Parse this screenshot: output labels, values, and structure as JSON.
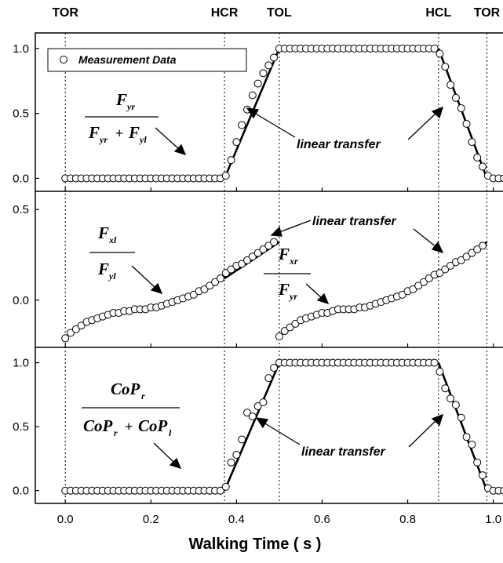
{
  "chart_data": {
    "type": "scatter",
    "xlabel": "Walking Time ( s )",
    "xlim": [
      -0.07,
      1.03
    ],
    "xticks": [
      "0.0",
      "0.2",
      "0.4",
      "0.6",
      "0.8",
      "1.0"
    ],
    "xtick_values": [
      0.0,
      0.2,
      0.4,
      0.6,
      0.8,
      1.0
    ],
    "gait_events": [
      {
        "label": "TOR",
        "x": 0.0
      },
      {
        "label": "HCR",
        "x": 0.372
      },
      {
        "label": "TOL",
        "x": 0.5
      },
      {
        "label": "HCL",
        "x": 0.872
      },
      {
        "label": "TOR",
        "x": 0.985
      }
    ],
    "legend": {
      "label": "Measurement Data",
      "placement": "top-left"
    },
    "panels": [
      {
        "id": "force-ratio",
        "ylim": [
          -0.1,
          1.12
        ],
        "yticks": [
          "0.0",
          "0.5",
          "1.0"
        ],
        "ytick_values": [
          0.0,
          0.5,
          1.0
        ],
        "equation": {
          "num": [
            "F",
            "yr"
          ],
          "den": [
            [
              "F",
              "yr"
            ],
            [
              "F",
              "yl"
            ]
          ]
        },
        "annotation": "linear transfer",
        "series": [
          {
            "x": [
              0.0,
              0.0125,
              0.025,
              0.0375,
              0.05,
              0.0625,
              0.075,
              0.0875,
              0.1,
              0.1125,
              0.125,
              0.1375,
              0.15,
              0.1625,
              0.175,
              0.1875,
              0.2,
              0.2125,
              0.225,
              0.2375,
              0.25,
              0.2625,
              0.275,
              0.2875,
              0.3,
              0.3125,
              0.325,
              0.3375,
              0.35,
              0.3625,
              0.375,
              0.3875,
              0.4,
              0.4125,
              0.425,
              0.4375,
              0.45,
              0.4625,
              0.475,
              0.4875,
              0.5,
              0.5125,
              0.525,
              0.5375,
              0.55,
              0.5625,
              0.575,
              0.5875,
              0.6,
              0.6125,
              0.625,
              0.6375,
              0.65,
              0.6625,
              0.675,
              0.6875,
              0.7,
              0.7125,
              0.725,
              0.7375,
              0.75,
              0.7625,
              0.775,
              0.7875,
              0.8,
              0.8125,
              0.825,
              0.8375,
              0.85,
              0.8625,
              0.875,
              0.8875,
              0.9,
              0.9125,
              0.925,
              0.9375,
              0.95,
              0.9625,
              0.975,
              0.9875,
              1.0,
              1.0125,
              1.025
            ],
            "y": [
              0,
              0,
              0,
              0,
              0,
              0,
              0,
              0,
              0,
              0,
              0,
              0,
              0,
              0,
              0,
              0,
              0,
              0,
              0,
              0,
              0,
              0,
              0,
              0,
              0,
              0,
              0,
              0,
              0,
              0,
              0.02,
              0.14,
              0.28,
              0.41,
              0.53,
              0.64,
              0.73,
              0.81,
              0.87,
              0.93,
              1.0,
              1.0,
              1.0,
              1.0,
              1.0,
              1.0,
              1.0,
              1.0,
              1.0,
              1.0,
              1.0,
              1.0,
              1.0,
              1.0,
              1.0,
              1.0,
              1.0,
              1.0,
              1.0,
              1.0,
              1.0,
              1.0,
              1.0,
              1.0,
              1.0,
              1.0,
              1.0,
              1.0,
              1.0,
              1.0,
              0.96,
              0.86,
              0.72,
              0.62,
              0.54,
              0.42,
              0.28,
              0.16,
              0.09,
              0.02,
              0,
              0,
              0
            ]
          }
        ],
        "fit_lines": [
          {
            "x": [
              0.372,
              0.5
            ],
            "y": [
              0.0,
              1.0
            ]
          },
          {
            "x": [
              0.872,
              0.985
            ],
            "y": [
              1.0,
              0.0
            ]
          }
        ]
      },
      {
        "id": "shear-ratio",
        "ylim": [
          -0.26,
          0.6
        ],
        "yticks": [
          "0.0",
          "0.5"
        ],
        "ytick_values": [
          0.0,
          0.5
        ],
        "equations": [
          {
            "num": [
              "F",
              "xl"
            ],
            "den": [
              "F",
              "yl"
            ]
          },
          {
            "num": [
              "F",
              "xr"
            ],
            "den": [
              "F",
              "yr"
            ]
          }
        ],
        "annotation": "linear transfer",
        "series": [
          {
            "x": [
              0.0,
              0.0125,
              0.025,
              0.0375,
              0.05,
              0.0625,
              0.075,
              0.0875,
              0.1,
              0.1125,
              0.125,
              0.1375,
              0.15,
              0.1625,
              0.175,
              0.1875,
              0.2,
              0.2125,
              0.225,
              0.2375,
              0.25,
              0.2625,
              0.275,
              0.2875,
              0.3,
              0.3125,
              0.325,
              0.3375,
              0.35,
              0.3625,
              0.375,
              0.3875,
              0.4,
              0.4125,
              0.425,
              0.4375,
              0.45,
              0.4625,
              0.475,
              0.4875
            ],
            "y": [
              -0.21,
              -0.18,
              -0.16,
              -0.14,
              -0.12,
              -0.11,
              -0.1,
              -0.09,
              -0.08,
              -0.07,
              -0.07,
              -0.06,
              -0.06,
              -0.05,
              -0.05,
              -0.05,
              -0.04,
              -0.04,
              -0.03,
              -0.02,
              -0.01,
              0.0,
              0.01,
              0.02,
              0.03,
              0.05,
              0.06,
              0.08,
              0.1,
              0.12,
              0.15,
              0.17,
              0.19,
              0.2,
              0.22,
              0.24,
              0.26,
              0.28,
              0.3,
              0.32
            ]
          },
          {
            "x": [
              0.5,
              0.5125,
              0.525,
              0.5375,
              0.55,
              0.5625,
              0.575,
              0.5875,
              0.6,
              0.6125,
              0.625,
              0.6375,
              0.65,
              0.6625,
              0.675,
              0.6875,
              0.7,
              0.7125,
              0.725,
              0.7375,
              0.75,
              0.7625,
              0.775,
              0.7875,
              0.8,
              0.8125,
              0.825,
              0.8375,
              0.85,
              0.8625,
              0.875,
              0.8875,
              0.9,
              0.9125,
              0.925,
              0.9375,
              0.95,
              0.9625,
              0.975
            ],
            "y": [
              -0.2,
              -0.17,
              -0.15,
              -0.13,
              -0.11,
              -0.1,
              -0.09,
              -0.08,
              -0.07,
              -0.07,
              -0.06,
              -0.05,
              -0.05,
              -0.05,
              -0.05,
              -0.04,
              -0.04,
              -0.03,
              -0.02,
              -0.01,
              0.0,
              0.01,
              0.02,
              0.03,
              0.05,
              0.06,
              0.08,
              0.1,
              0.12,
              0.14,
              0.15,
              0.17,
              0.19,
              0.21,
              0.22,
              0.24,
              0.26,
              0.28,
              0.3
            ]
          }
        ],
        "fit_lines": [
          {
            "x": [
              0.372,
              0.5
            ],
            "y": [
              0.12,
              0.32
            ]
          },
          {
            "x": [
              0.872,
              0.985
            ],
            "y": [
              0.14,
              0.32
            ]
          }
        ]
      },
      {
        "id": "cop-ratio",
        "ylim": [
          -0.1,
          1.12
        ],
        "yticks": [
          "0.0",
          "0.5",
          "1.0"
        ],
        "ytick_values": [
          0.0,
          0.5,
          1.0
        ],
        "equation": {
          "num": [
            "CoP",
            "r"
          ],
          "den": [
            [
              "CoP",
              "r"
            ],
            [
              "CoP",
              "l"
            ]
          ]
        },
        "annotation": "linear transfer",
        "series": [
          {
            "x": [
              0.0,
              0.0125,
              0.025,
              0.0375,
              0.05,
              0.0625,
              0.075,
              0.0875,
              0.1,
              0.1125,
              0.125,
              0.1375,
              0.15,
              0.1625,
              0.175,
              0.1875,
              0.2,
              0.2125,
              0.225,
              0.2375,
              0.25,
              0.2625,
              0.275,
              0.2875,
              0.3,
              0.3125,
              0.325,
              0.3375,
              0.35,
              0.3625,
              0.375,
              0.3875,
              0.4,
              0.4125,
              0.425,
              0.4375,
              0.45,
              0.4625,
              0.475,
              0.4875,
              0.5,
              0.5125,
              0.525,
              0.5375,
              0.55,
              0.5625,
              0.575,
              0.5875,
              0.6,
              0.6125,
              0.625,
              0.6375,
              0.65,
              0.6625,
              0.675,
              0.6875,
              0.7,
              0.7125,
              0.725,
              0.7375,
              0.75,
              0.7625,
              0.775,
              0.7875,
              0.8,
              0.8125,
              0.825,
              0.8375,
              0.85,
              0.8625,
              0.875,
              0.8875,
              0.9,
              0.9125,
              0.925,
              0.9375,
              0.95,
              0.9625,
              0.975,
              0.9875,
              1.0,
              1.0125,
              1.025
            ],
            "y": [
              0,
              0,
              0,
              0,
              0,
              0,
              0,
              0,
              0,
              0,
              0,
              0,
              0,
              0,
              0,
              0,
              0,
              0,
              0,
              0,
              0,
              0,
              0,
              0,
              0,
              0,
              0,
              0,
              0,
              0,
              0.03,
              0.22,
              0.28,
              0.4,
              0.61,
              0.58,
              0.66,
              0.69,
              0.88,
              0.96,
              1.0,
              1.0,
              1.0,
              1.0,
              1.0,
              1.0,
              1.0,
              1.0,
              1.0,
              1.0,
              1.0,
              1.0,
              1.0,
              1.0,
              1.0,
              1.0,
              1.0,
              1.0,
              1.0,
              1.0,
              1.0,
              1.0,
              1.0,
              1.0,
              1.0,
              1.0,
              1.0,
              1.0,
              1.0,
              1.0,
              0.93,
              0.8,
              0.72,
              0.67,
              0.57,
              0.42,
              0.36,
              0.22,
              0.12,
              0.02,
              0,
              0,
              0
            ]
          }
        ],
        "fit_lines": [
          {
            "x": [
              0.372,
              0.5
            ],
            "y": [
              0.0,
              1.0
            ]
          },
          {
            "x": [
              0.872,
              0.985
            ],
            "y": [
              1.0,
              0.0
            ]
          }
        ]
      }
    ]
  }
}
